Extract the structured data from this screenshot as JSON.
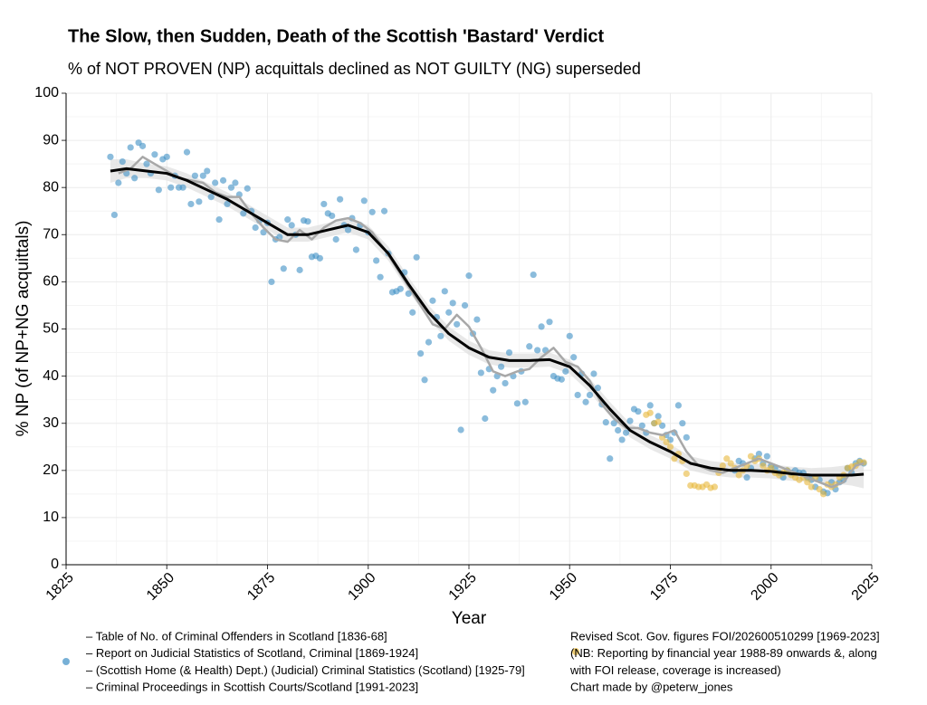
{
  "chart_data": {
    "type": "scatter",
    "title": "The Slow, then Sudden, Death of the Scottish 'Bastard' Verdict",
    "subtitle": "% of NOT PROVEN (NP) acquittals declined as NOT GUILTY (NG) superseded",
    "xlabel": "Year",
    "ylabel": "% NP (of NP+NG acquittals)",
    "xlim": [
      1825,
      2025
    ],
    "ylim": [
      0,
      100
    ],
    "xticks": [
      1825,
      1850,
      1875,
      1900,
      1925,
      1950,
      1975,
      2000,
      2025
    ],
    "yticks": [
      0,
      10,
      20,
      30,
      40,
      50,
      60,
      70,
      80,
      90,
      100
    ],
    "grid": true,
    "credit": "Chart made by @peterw_jones",
    "series": [
      {
        "kind": "band",
        "color": "#dedede",
        "x": [
          1836,
          1840,
          1845,
          1850,
          1855,
          1860,
          1865,
          1870,
          1875,
          1880,
          1885,
          1890,
          1895,
          1900,
          1905,
          1910,
          1915,
          1920,
          1925,
          1930,
          1935,
          1940,
          1945,
          1950,
          1955,
          1960,
          1965,
          1970,
          1975,
          1980,
          1985,
          1990,
          1995,
          2000,
          2005,
          2010,
          2015,
          2020,
          2023
        ],
        "lower": [
          81,
          82,
          82,
          81.5,
          80,
          78,
          76,
          73.5,
          71,
          68.5,
          68.5,
          69.5,
          70.5,
          69,
          64.5,
          58,
          52,
          47.5,
          44.5,
          42.5,
          41.8,
          41.8,
          42,
          40.5,
          36.5,
          31.5,
          27,
          24.5,
          22.5,
          20,
          19,
          18.5,
          18.5,
          18.3,
          17.8,
          17.5,
          17.3,
          16.8,
          16.2
        ],
        "upper": [
          86,
          86,
          85,
          84.5,
          83,
          81,
          79,
          76.5,
          74,
          71.5,
          71.5,
          72.5,
          73.5,
          72,
          67.5,
          61,
          55,
          50.5,
          47.5,
          45.5,
          44.8,
          44.8,
          45,
          43.5,
          39.5,
          34.5,
          30,
          27.5,
          25.5,
          23,
          22,
          21.5,
          21.5,
          21.3,
          20.8,
          20.5,
          20.7,
          21.2,
          22.2
        ]
      },
      {
        "kind": "scatter",
        "color": "#3d8fc4",
        "legend_lines": [
          "– Table of No. of Criminal Offenders in Scotland [1836-68]",
          "– Report on Judicial Statistics of Scotland, Criminal [1869-1924]",
          "– (Scottish Home (& Health) Dept.) (Judicial) Criminal Statistics (Scotland) [1925-79]",
          "– Criminal Proceedings in Scottish Courts/Scotland [1991-2023]"
        ],
        "x": [
          1836,
          1837,
          1838,
          1839,
          1840,
          1841,
          1842,
          1843,
          1844,
          1845,
          1846,
          1847,
          1848,
          1849,
          1850,
          1851,
          1852,
          1853,
          1854,
          1855,
          1856,
          1857,
          1858,
          1859,
          1860,
          1861,
          1862,
          1863,
          1864,
          1865,
          1866,
          1867,
          1868,
          1869,
          1870,
          1871,
          1872,
          1873,
          1874,
          1875,
          1876,
          1877,
          1878,
          1879,
          1880,
          1881,
          1882,
          1883,
          1884,
          1885,
          1886,
          1887,
          1888,
          1889,
          1890,
          1891,
          1892,
          1893,
          1894,
          1895,
          1896,
          1897,
          1898,
          1899,
          1900,
          1901,
          1902,
          1903,
          1904,
          1905,
          1906,
          1907,
          1908,
          1909,
          1910,
          1911,
          1912,
          1913,
          1914,
          1915,
          1916,
          1917,
          1918,
          1919,
          1920,
          1921,
          1922,
          1923,
          1924,
          1925,
          1926,
          1927,
          1928,
          1929,
          1930,
          1931,
          1932,
          1933,
          1934,
          1935,
          1936,
          1937,
          1938,
          1939,
          1940,
          1941,
          1942,
          1943,
          1944,
          1945,
          1946,
          1947,
          1948,
          1949,
          1950,
          1951,
          1952,
          1953,
          1954,
          1955,
          1956,
          1957,
          1958,
          1959,
          1960,
          1961,
          1962,
          1963,
          1964,
          1965,
          1966,
          1967,
          1968,
          1969,
          1970,
          1971,
          1972,
          1973,
          1974,
          1975,
          1976,
          1977,
          1978,
          1979,
          1991,
          1992,
          1993,
          1994,
          1995,
          1996,
          1997,
          1998,
          1999,
          2000,
          2001,
          2002,
          2003,
          2004,
          2005,
          2006,
          2007,
          2008,
          2009,
          2010,
          2011,
          2012,
          2013,
          2014,
          2015,
          2016,
          2017,
          2018,
          2019,
          2020,
          2021,
          2022,
          2023
        ],
        "values": [
          86.5,
          74.2,
          81,
          85.5,
          83,
          88.5,
          82,
          89.5,
          88.8,
          85,
          83,
          87,
          79.5,
          86,
          86.5,
          80,
          82.5,
          80,
          80,
          87.5,
          76.5,
          82.5,
          77,
          82.5,
          83.5,
          78,
          81,
          73.2,
          81.5,
          76.5,
          80,
          81,
          78.5,
          74.5,
          79.8,
          75,
          71.5,
          73,
          70.5,
          72.5,
          60,
          69,
          69.5,
          62.8,
          73.2,
          72,
          70,
          62.5,
          73,
          72.8,
          65.3,
          65.5,
          65,
          76.5,
          74.5,
          74,
          69,
          77.5,
          72,
          71,
          73.5,
          66.8,
          72,
          77.2,
          70.5,
          74.8,
          64.5,
          61,
          75,
          66,
          57.8,
          58,
          58.5,
          62,
          57.5,
          53.5,
          65.2,
          44.8,
          39.2,
          47.2,
          56,
          52.5,
          48.5,
          58,
          53.5,
          55.5,
          51,
          28.6,
          55,
          61.3,
          49,
          52,
          40.7,
          31,
          41.5,
          37,
          40,
          42,
          38.5,
          45,
          40,
          34.2,
          41,
          34.5,
          46.3,
          61.5,
          45.5,
          50.5,
          45.5,
          51.5,
          40,
          39.5,
          39.3,
          41,
          48.5,
          44,
          36,
          40.5,
          34.5,
          36,
          40.5,
          37.5,
          34,
          30.2,
          22.5,
          30,
          28.5,
          26.5,
          28,
          30.5,
          33,
          32.5,
          29.5,
          28,
          33.8,
          30,
          31.5,
          29.5,
          27.5,
          26.5,
          28,
          33.8,
          30,
          27,
          20,
          22,
          21.5,
          18.5,
          20.5,
          22.5,
          23.5,
          21.5,
          23,
          21,
          20.5,
          19.5,
          18.5,
          20,
          19.5,
          20,
          19.5,
          19.5,
          18.5,
          18,
          16.5,
          18,
          15.5,
          15.2,
          17.5,
          16,
          17.5,
          18,
          20.5,
          19.5,
          21.5,
          22,
          21.5
        ]
      },
      {
        "kind": "scatter",
        "color": "#e8b83a",
        "legend_lines": [
          "Revised Scot. Gov. figures FOI/202600510299 [1969-2023]",
          "(NB: Reporting by financial year 1988-89 onwards &, along",
          "with FOI release, coverage is increased)"
        ],
        "x": [
          1969,
          1970,
          1971,
          1972,
          1973,
          1974,
          1975,
          1976,
          1977,
          1978,
          1979,
          1980,
          1981,
          1982,
          1983,
          1984,
          1985,
          1986,
          1987,
          1988,
          1989,
          1990,
          1991,
          1992,
          1993,
          1994,
          1995,
          1996,
          1997,
          1998,
          1999,
          2000,
          2001,
          2002,
          2003,
          2004,
          2005,
          2006,
          2007,
          2008,
          2009,
          2010,
          2011,
          2012,
          2013,
          2014,
          2015,
          2016,
          2017,
          2018,
          2019,
          2020,
          2021,
          2022,
          2023
        ],
        "values": [
          31.8,
          32.2,
          30,
          30.3,
          27,
          26,
          25,
          22.5,
          23.5,
          22,
          19.3,
          16.8,
          16.8,
          16.5,
          16.5,
          17,
          16.3,
          16.5,
          19.5,
          21,
          22.5,
          21.5,
          20.5,
          19,
          20,
          21,
          23,
          22,
          22.5,
          21,
          20,
          20.5,
          19.5,
          19,
          19.5,
          20,
          19,
          18.5,
          18,
          18.5,
          17.5,
          16.5,
          18.5,
          16,
          15,
          17,
          16.5,
          17,
          18.5,
          19,
          20.5,
          20.8,
          21,
          21.8,
          21.7
        ]
      },
      {
        "kind": "line",
        "color": "#a8a8a8",
        "x": [
          1838,
          1841,
          1844,
          1847,
          1850,
          1853,
          1856,
          1859,
          1862,
          1865,
          1868,
          1871,
          1874,
          1877,
          1880,
          1883,
          1886,
          1889,
          1892,
          1895,
          1898,
          1901,
          1904,
          1907,
          1910,
          1913,
          1916,
          1919,
          1922,
          1925,
          1928,
          1931,
          1934,
          1937,
          1940,
          1943,
          1946,
          1949,
          1952,
          1955,
          1958,
          1961,
          1964,
          1967,
          1970,
          1973,
          1976,
          1979,
          1982,
          1985,
          1988,
          1991,
          1994,
          1997,
          2000,
          2003,
          2006,
          2009,
          2012,
          2015,
          2018,
          2021,
          2023
        ],
        "values": [
          83,
          84,
          86.5,
          85,
          83.5,
          82,
          81.5,
          81,
          79,
          78,
          78,
          74.5,
          71.5,
          69,
          68.5,
          71,
          69,
          71.5,
          73,
          73.5,
          72.5,
          70.5,
          67,
          63,
          59,
          55,
          51,
          50,
          53,
          50.5,
          46,
          41,
          40,
          41,
          41.5,
          44,
          46,
          43,
          42,
          39,
          34,
          31,
          29,
          29,
          28,
          27.5,
          28.5,
          24,
          21,
          20,
          19.5,
          20.5,
          21.5,
          22.5,
          21.5,
          20.5,
          19.5,
          18.5,
          17.5,
          16.5,
          17.5,
          21,
          21.5
        ]
      },
      {
        "kind": "line",
        "color": "#000000",
        "x": [
          1836,
          1840,
          1845,
          1850,
          1855,
          1860,
          1865,
          1870,
          1875,
          1880,
          1885,
          1890,
          1895,
          1900,
          1905,
          1910,
          1915,
          1920,
          1925,
          1930,
          1935,
          1940,
          1945,
          1950,
          1955,
          1960,
          1965,
          1970,
          1975,
          1980,
          1985,
          1990,
          1995,
          2000,
          2005,
          2010,
          2015,
          2020,
          2023
        ],
        "values": [
          83.5,
          84,
          83.5,
          83,
          81.5,
          79.5,
          77.5,
          75,
          72.5,
          70,
          70,
          71,
          72,
          70.5,
          66,
          59.5,
          53.5,
          49,
          46,
          44,
          43.3,
          43.3,
          43.5,
          42,
          38,
          33,
          28.5,
          26,
          24,
          21.5,
          20.5,
          20,
          20,
          19.8,
          19.3,
          19,
          19,
          19,
          19.2
        ]
      }
    ]
  }
}
